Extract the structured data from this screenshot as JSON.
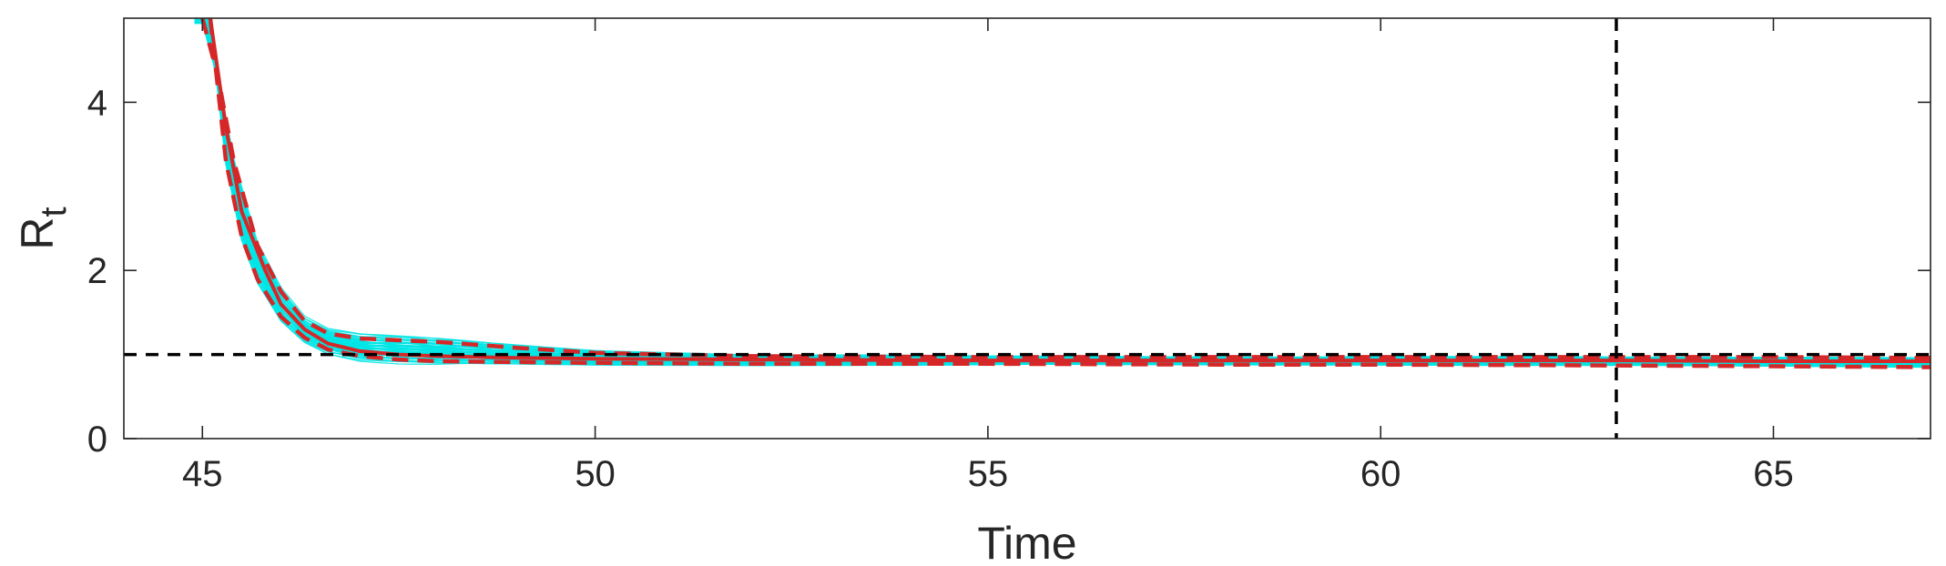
{
  "chart_data": {
    "type": "line",
    "title": "",
    "xlabel": "Time",
    "ylabel_main": "R",
    "ylabel_sub": "t",
    "xlim": [
      44,
      67
    ],
    "ylim": [
      0,
      5
    ],
    "xticks": [
      45,
      50,
      55,
      60,
      65
    ],
    "yticks": [
      0,
      2,
      4
    ],
    "xtick_labels": [
      "45",
      "50",
      "55",
      "60",
      "65"
    ],
    "ytick_labels": [
      "0",
      "2",
      "4"
    ],
    "grid": false,
    "legend": "none",
    "reference_lines": {
      "horizontal_y": 1,
      "vertical_x": 63
    },
    "series": [
      {
        "role": "median",
        "style": "solid",
        "color": "#d62728",
        "x": [
          45.1,
          45.3,
          45.5,
          45.8,
          46.0,
          46.3,
          46.6,
          47.0,
          47.5,
          48,
          49,
          50,
          52,
          55,
          58,
          60,
          63,
          65,
          67
        ],
        "y": [
          5.0,
          3.7,
          2.7,
          2.0,
          1.6,
          1.3,
          1.13,
          1.04,
          1.0,
          0.98,
          0.96,
          0.95,
          0.94,
          0.93,
          0.93,
          0.93,
          0.93,
          0.92,
          0.92
        ]
      },
      {
        "role": "upper-bound",
        "style": "dashed",
        "color": "#d62728",
        "x": [
          45.0,
          45.2,
          45.4,
          45.7,
          46.0,
          46.3,
          46.6,
          47.0,
          47.5,
          48,
          49,
          50,
          52,
          55,
          58,
          60,
          63,
          65,
          67
        ],
        "y": [
          5.0,
          4.3,
          3.3,
          2.3,
          1.75,
          1.4,
          1.25,
          1.19,
          1.17,
          1.15,
          1.08,
          1.02,
          0.98,
          0.97,
          0.97,
          0.97,
          0.97,
          0.97,
          0.96
        ]
      },
      {
        "role": "lower-bound",
        "style": "dashed",
        "color": "#d62728",
        "x": [
          45.1,
          45.3,
          45.5,
          45.7,
          46.0,
          46.3,
          46.6,
          47.0,
          47.5,
          48,
          49,
          50,
          52,
          55,
          58,
          60,
          63,
          65,
          67
        ],
        "y": [
          5.0,
          3.3,
          2.4,
          1.9,
          1.45,
          1.2,
          1.06,
          0.98,
          0.94,
          0.92,
          0.91,
          0.9,
          0.89,
          0.89,
          0.88,
          0.88,
          0.87,
          0.86,
          0.85
        ]
      }
    ],
    "colors": {
      "ensemble": "#00e5e5",
      "estimate": "#d62728",
      "reference": "#000000",
      "axes": "#262626"
    }
  }
}
